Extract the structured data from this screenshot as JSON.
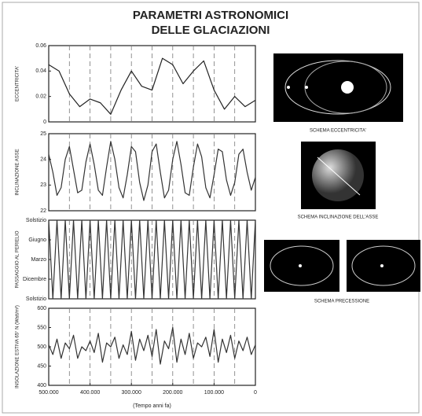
{
  "title": [
    "PARAMETRI ASTRONOMICI",
    "DELLE GLACIAZIONI"
  ],
  "illustrations": [
    {
      "caption": "SCHEMA ECCENTRICITA'"
    },
    {
      "caption": "SCHEMA INCLINAZIONE DELL'ASSE"
    },
    {
      "caption": "SCHEMA PRECESSIONE"
    }
  ],
  "chart_data": [
    {
      "type": "line",
      "ylabel": "ECCENTRICITA'",
      "xlim": [
        500000,
        0
      ],
      "ylim": [
        0,
        0.06
      ],
      "yticks": [
        0,
        0.02,
        0.04,
        0.06
      ],
      "x": [
        500000,
        475000,
        450000,
        425000,
        400000,
        375000,
        350000,
        325000,
        300000,
        275000,
        250000,
        225000,
        200000,
        175000,
        150000,
        125000,
        100000,
        75000,
        50000,
        25000,
        0
      ],
      "series": [
        {
          "color": "#222222",
          "values": [
            0.045,
            0.04,
            0.022,
            0.012,
            0.018,
            0.015,
            0.006,
            0.025,
            0.04,
            0.028,
            0.025,
            0.05,
            0.045,
            0.03,
            0.04,
            0.048,
            0.025,
            0.01,
            0.02,
            0.012,
            0.017
          ]
        }
      ]
    },
    {
      "type": "line",
      "ylabel": "INCLINAZIONE ASSE",
      "xlim": [
        500000,
        0
      ],
      "ylim": [
        22,
        25
      ],
      "yticks": [
        22,
        23,
        24,
        25
      ],
      "x": [
        500000,
        490000,
        480000,
        470000,
        460000,
        450000,
        440000,
        430000,
        420000,
        410000,
        400000,
        390000,
        380000,
        370000,
        360000,
        350000,
        340000,
        330000,
        320000,
        310000,
        300000,
        290000,
        280000,
        270000,
        260000,
        250000,
        240000,
        230000,
        220000,
        210000,
        200000,
        190000,
        180000,
        170000,
        160000,
        150000,
        140000,
        130000,
        120000,
        110000,
        100000,
        90000,
        80000,
        70000,
        60000,
        50000,
        40000,
        30000,
        20000,
        10000,
        0
      ],
      "series": [
        {
          "color": "#333333",
          "values": [
            24.2,
            23.5,
            22.6,
            22.9,
            24.0,
            24.5,
            23.6,
            22.7,
            22.8,
            23.9,
            24.6,
            23.8,
            22.8,
            22.6,
            23.7,
            24.7,
            24.0,
            22.9,
            22.5,
            23.4,
            24.5,
            24.3,
            23.1,
            22.4,
            23.0,
            24.3,
            24.6,
            23.5,
            22.5,
            22.8,
            24.0,
            24.7,
            23.8,
            22.7,
            22.6,
            23.7,
            24.6,
            24.1,
            22.9,
            22.5,
            23.4,
            24.4,
            24.3,
            23.2,
            22.6,
            23.1,
            24.2,
            24.4,
            23.5,
            22.8,
            23.3
          ]
        }
      ]
    },
    {
      "type": "line",
      "ylabel": "PASSAGGIO AL PERIELIO",
      "xlim": [
        500000,
        0
      ],
      "ylim": [
        0,
        4
      ],
      "yticks": [
        {
          "value": 0,
          "label": "Solstizio"
        },
        {
          "value": 1,
          "label": "Dicembre"
        },
        {
          "value": 2,
          "label": "Marzo"
        },
        {
          "value": 3,
          "label": "Giugno"
        },
        {
          "value": 4,
          "label": "Solstizio"
        }
      ],
      "x": [
        500000,
        490000,
        480000,
        470000,
        460000,
        450000,
        440000,
        430000,
        420000,
        410000,
        400000,
        390000,
        380000,
        370000,
        360000,
        350000,
        340000,
        330000,
        320000,
        310000,
        300000,
        290000,
        280000,
        270000,
        260000,
        250000,
        240000,
        230000,
        220000,
        210000,
        200000,
        190000,
        180000,
        170000,
        160000,
        150000,
        140000,
        130000,
        120000,
        110000,
        100000,
        90000,
        80000,
        70000,
        60000,
        50000,
        40000,
        30000,
        20000,
        10000,
        0
      ],
      "series": [
        {
          "color": "#333333",
          "values": [
            4,
            0,
            4,
            0,
            4,
            0,
            4,
            0,
            4,
            0,
            4,
            0,
            4,
            0,
            4,
            0,
            4,
            0,
            4,
            0,
            4,
            0,
            4,
            0,
            4,
            0,
            4,
            0,
            4,
            0,
            4,
            0,
            4,
            0,
            4,
            0,
            4,
            0,
            4,
            0,
            4,
            0,
            4,
            0,
            4,
            0,
            4,
            0,
            4,
            0,
            4
          ]
        }
      ]
    },
    {
      "type": "line",
      "ylabel": "INSOLAZIONE ESTIVA 65° N (Watt/m²)",
      "xlabel": "(Tempo anni fa)",
      "xlim": [
        500000,
        0
      ],
      "ylim": [
        400,
        600
      ],
      "yticks": [
        400,
        450,
        500,
        550,
        600
      ],
      "xticks": [
        {
          "value": 500000,
          "label": "500.000"
        },
        {
          "value": 400000,
          "label": "400.000"
        },
        {
          "value": 300000,
          "label": "300.000"
        },
        {
          "value": 200000,
          "label": "200.000"
        },
        {
          "value": 100000,
          "label": "100.000"
        },
        0
      ],
      "x": [
        500000,
        490000,
        480000,
        470000,
        460000,
        450000,
        440000,
        430000,
        420000,
        410000,
        400000,
        390000,
        380000,
        370000,
        360000,
        350000,
        340000,
        330000,
        320000,
        310000,
        300000,
        290000,
        280000,
        270000,
        260000,
        250000,
        240000,
        230000,
        220000,
        210000,
        200000,
        190000,
        180000,
        170000,
        160000,
        150000,
        140000,
        130000,
        120000,
        110000,
        100000,
        90000,
        80000,
        70000,
        60000,
        50000,
        40000,
        30000,
        20000,
        10000,
        0
      ],
      "series": [
        {
          "color": "#333333",
          "values": [
            505,
            480,
            520,
            470,
            510,
            495,
            530,
            470,
            500,
            490,
            515,
            485,
            535,
            460,
            510,
            500,
            525,
            470,
            505,
            480,
            540,
            465,
            520,
            490,
            530,
            475,
            545,
            455,
            515,
            495,
            550,
            460,
            520,
            480,
            535,
            470,
            510,
            500,
            525,
            475,
            545,
            460,
            520,
            485,
            530,
            470,
            515,
            490,
            525,
            480,
            505
          ]
        }
      ]
    }
  ]
}
